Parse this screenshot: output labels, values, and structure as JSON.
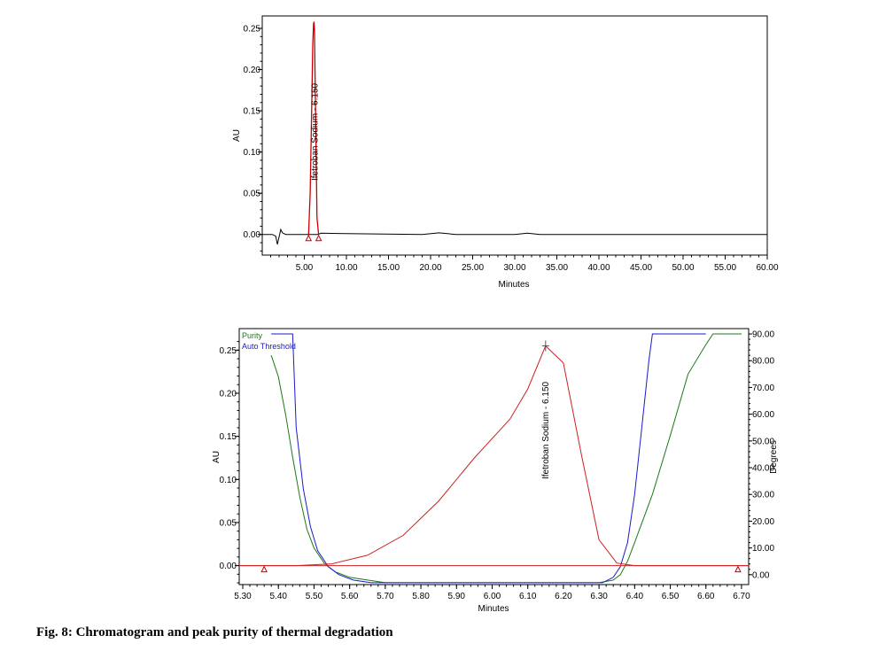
{
  "caption": "Fig. 8: Chromatogram and peak purity of thermal degradation",
  "chart_data": [
    {
      "type": "line",
      "xlabel": "Minutes",
      "ylabel": "AU",
      "xlim": [
        0,
        60
      ],
      "ylim": [
        -0.025,
        0.265
      ],
      "xticks": [
        "5.00",
        "10.00",
        "15.00",
        "20.00",
        "25.00",
        "30.00",
        "35.00",
        "40.00",
        "45.00",
        "50.00",
        "55.00",
        "60.00"
      ],
      "yticks": [
        "0.00",
        "0.05",
        "0.10",
        "0.15",
        "0.20",
        "0.25"
      ],
      "peak_label": "Ifetroban Sodium - 6.150",
      "peak_rt": 6.15,
      "series": [
        {
          "color": "#000000",
          "x": [
            0,
            1.2,
            1.6,
            1.8,
            2.0,
            2.2,
            2.4,
            2.8,
            3.5,
            5.4,
            6.6,
            7.0,
            10,
            19,
            21,
            23,
            30,
            31.5,
            33,
            45,
            52,
            60
          ],
          "y": [
            0.0,
            0.0,
            -0.002,
            -0.012,
            -0.003,
            0.006,
            0.002,
            0.0,
            0.0,
            0.0,
            0.0,
            0.0015,
            0.001,
            0.0,
            0.002,
            0.0,
            0.0,
            0.0015,
            0.0,
            0.0,
            0.0,
            0.0
          ]
        },
        {
          "color": "#cc0000",
          "x": [
            5.5,
            5.7,
            5.9,
            6.0,
            6.1,
            6.15,
            6.2,
            6.3,
            6.5,
            6.7
          ],
          "y": [
            0.0,
            0.05,
            0.17,
            0.23,
            0.255,
            0.258,
            0.25,
            0.17,
            0.02,
            0.0
          ]
        }
      ]
    },
    {
      "type": "line",
      "xlabel": "Minutes",
      "ylabel": "AU",
      "y2label": "Degrees",
      "xlim": [
        5.29,
        6.72
      ],
      "ylim": [
        -0.022,
        0.275
      ],
      "y2lim": [
        -3.7,
        92.0
      ],
      "xticks": [
        "5.30",
        "5.40",
        "5.50",
        "5.60",
        "5.70",
        "5.80",
        "5.90",
        "6.00",
        "6.10",
        "6.20",
        "6.30",
        "6.40",
        "6.50",
        "6.60",
        "6.70"
      ],
      "yticks": [
        "0.00",
        "0.05",
        "0.10",
        "0.15",
        "0.20",
        "0.25"
      ],
      "y2ticks": [
        "0.00",
        "10.00",
        "20.00",
        "30.00",
        "40.00",
        "50.00",
        "60.00",
        "70.00",
        "80.00",
        "90.00"
      ],
      "peak_label": "Ifetroban Sodium - 6.150",
      "peak_rt": 6.15,
      "series": [
        {
          "name": "Purity",
          "axis": "y2",
          "color": "#1a7a1a",
          "x": [
            5.38,
            5.4,
            5.42,
            5.44,
            5.46,
            5.48,
            5.5,
            5.53,
            5.56,
            5.6,
            5.65,
            5.7,
            5.8,
            6.0,
            6.2,
            6.3,
            6.34,
            6.36,
            6.38,
            6.4,
            6.45,
            6.5,
            6.55,
            6.6,
            6.62,
            6.7
          ],
          "y": [
            82,
            74,
            60,
            44,
            29,
            17,
            10,
            4,
            1,
            -1,
            -2,
            -3,
            -3,
            -3,
            -3,
            -3,
            -2,
            0,
            5,
            12,
            30,
            52,
            75,
            86,
            90,
            90
          ]
        },
        {
          "name": "Auto Threshold",
          "axis": "y2",
          "color": "#1a1acc",
          "x": [
            5.38,
            5.44,
            5.45,
            5.47,
            5.49,
            5.51,
            5.54,
            5.57,
            5.61,
            5.66,
            5.75,
            6.0,
            6.31,
            6.34,
            6.36,
            6.38,
            6.4,
            6.42,
            6.44,
            6.45,
            6.6
          ],
          "y": [
            90,
            90,
            55,
            32,
            18,
            9,
            3,
            0,
            -2,
            -3,
            -3,
            -3,
            -3,
            -1,
            3,
            12,
            30,
            55,
            80,
            90,
            90
          ]
        },
        {
          "name": "",
          "axis": "y",
          "color": "#cc2222",
          "x": [
            5.29,
            5.45,
            5.55,
            5.65,
            5.75,
            5.85,
            5.95,
            6.05,
            6.1,
            6.15,
            6.2,
            6.25,
            6.3,
            6.35,
            6.4,
            6.5,
            6.72
          ],
          "y": [
            0.0,
            0.0,
            0.002,
            0.012,
            0.035,
            0.075,
            0.125,
            0.17,
            0.205,
            0.255,
            0.235,
            0.13,
            0.03,
            0.003,
            0.0,
            0.0,
            0.0
          ]
        },
        {
          "name": "",
          "axis": "y",
          "color": "#cc2222",
          "x": [
            5.29,
            6.72
          ],
          "y": [
            0.0,
            0.0
          ]
        }
      ]
    }
  ]
}
